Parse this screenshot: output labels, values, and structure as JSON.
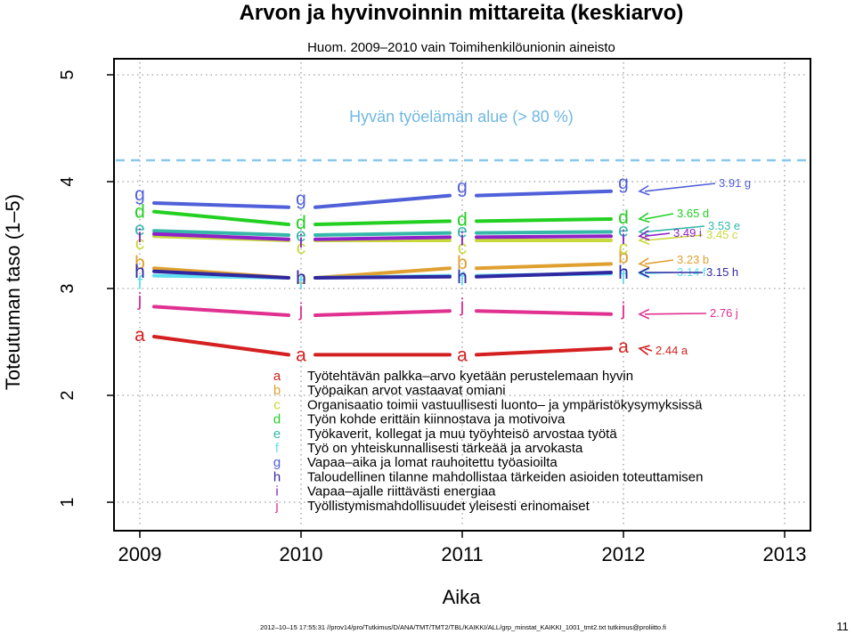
{
  "chart_data": {
    "type": "line",
    "title": "Arvon ja hyvinvoinnin mittareita (keskiarvo)",
    "subtitle": "Huom. 2009–2010 vain Toimihenkilöunionin aineisto",
    "xlabel": "Aika",
    "ylabel": "Toteutuman taso (1–5)",
    "xlim": [
      2009,
      2013
    ],
    "ylim": [
      1,
      5
    ],
    "x_ticks": [
      "2009",
      "2010",
      "2011",
      "2012",
      "2013"
    ],
    "y_ticks": [
      "1",
      "2",
      "3",
      "4",
      "5"
    ],
    "grid": true,
    "x": [
      2009,
      2010,
      2011,
      2012
    ],
    "reference_line": {
      "value": 4.2,
      "label": "Hyvän työelämän alue (> 80 %)"
    },
    "series": [
      {
        "letter": "a",
        "name": "Työtehtävän palkka–arvo kyetään perustelemaan hyvin",
        "color": "#d42020",
        "values": [
          2.55,
          2.38,
          2.38,
          2.44
        ],
        "end_label": "2.44 a"
      },
      {
        "letter": "b",
        "name": "Työpaikan arvot vastaavat omiani",
        "color": "#e0a030",
        "values": [
          3.19,
          3.1,
          3.19,
          3.23
        ],
        "end_label": "3.23 b"
      },
      {
        "letter": "c",
        "name": "Organisaatio toimii vastuullisesti luonto– ja ympäristökysymyksissä",
        "color": "#c8d83a",
        "values": [
          3.49,
          3.45,
          3.45,
          3.45
        ],
        "end_label": "3.45 c"
      },
      {
        "letter": "d",
        "name": "Työn kohde erittäin kiinnostava ja motivoiva",
        "color": "#22d022",
        "values": [
          3.72,
          3.6,
          3.63,
          3.65
        ],
        "end_label": "3.65 d"
      },
      {
        "letter": "e",
        "name": "Työkaverit, kollegat ja muu työyhteisö arvostaa työtä",
        "color": "#35b8a8",
        "values": [
          3.54,
          3.5,
          3.52,
          3.53
        ],
        "end_label": "3.53 e"
      },
      {
        "letter": "f",
        "name": "Työ on yhteiskunnallisesti tärkeää ja arvokasta",
        "color": "#5fe0f0",
        "values": [
          3.12,
          3.1,
          3.12,
          3.14
        ],
        "end_label": "3.14 f"
      },
      {
        "letter": "g",
        "name": "Vapaa–aika ja lomat rauhoitettu työasioilta",
        "color": "#5060d8",
        "values": [
          3.8,
          3.76,
          3.87,
          3.91
        ],
        "end_label": "3.91 g"
      },
      {
        "letter": "h",
        "name": "Taloudellinen tilanne mahdollistaa tärkeiden asioiden toteuttamisen",
        "color": "#3028a0",
        "values": [
          3.16,
          3.1,
          3.11,
          3.15
        ],
        "end_label": "3.15 h"
      },
      {
        "letter": "i",
        "name": "Vapaa–ajalle riittävästi energiaa",
        "color": "#9020c8",
        "values": [
          3.51,
          3.46,
          3.48,
          3.49
        ],
        "end_label": "3.49 i"
      },
      {
        "letter": "j",
        "name": "Työllistymismahdollisuudet yleisesti erinomaiset",
        "color": "#e03090",
        "values": [
          2.83,
          2.75,
          2.79,
          2.76
        ],
        "end_label": "2.76 j"
      }
    ]
  },
  "footer": {
    "source": "2012–10–15 17:55:31 //prov14/pro/Tutkimus/D/ANA/TMT/TMT2/TBL/KAIKKI/ALL/grp_minstat_KAIKKI_1001_tmt2.txt tutkimus@proliitto.fi",
    "page_number": "11"
  }
}
